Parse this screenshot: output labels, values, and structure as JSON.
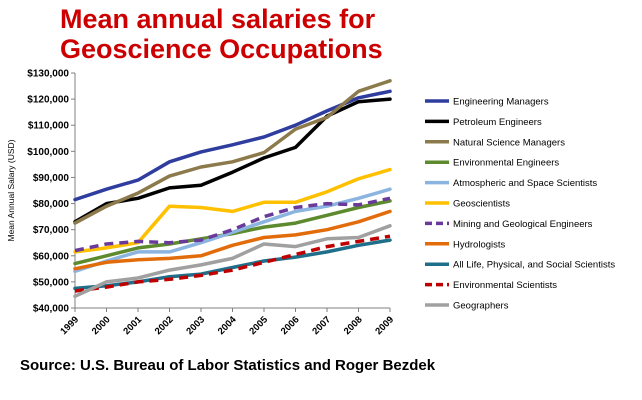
{
  "title": {
    "line1": "Mean annual salaries for",
    "line2": "Geoscience Occupations"
  },
  "source": "Source:  U.S. Bureau of Labor Statistics and Roger Bezdek",
  "chart_data": {
    "type": "line",
    "title": "Mean annual salaries for Geoscience Occupations",
    "xlabel": "",
    "ylabel": "Mean Annual Salary (USD)",
    "x": [
      "1999",
      "2000",
      "2001",
      "2002",
      "2003",
      "2004",
      "2005",
      "2006",
      "2007",
      "2008",
      "2009"
    ],
    "ylim": [
      40000,
      130000
    ],
    "yticks": [
      40000,
      50000,
      60000,
      70000,
      80000,
      90000,
      100000,
      110000,
      120000,
      130000
    ],
    "ytick_labels": [
      "$40,000",
      "$50,000",
      "$60,000",
      "$70,000",
      "$80,000",
      "$90,000",
      "$100,000",
      "$110,000",
      "$120,000",
      "$130,000"
    ],
    "grid": false,
    "legend_position": "right",
    "series": [
      {
        "name": "Engineering Managers",
        "color": "#2e3d9e",
        "dashed": false,
        "values": [
          81500,
          85500,
          89000,
          96000,
          99800,
          102500,
          105500,
          110000,
          115500,
          120500,
          123000
        ]
      },
      {
        "name": "Petroleum Engineers",
        "color": "#000000",
        "dashed": false,
        "values": [
          73000,
          80000,
          82000,
          86000,
          87000,
          92000,
          97500,
          101500,
          113500,
          119000,
          120000
        ]
      },
      {
        "name": "Natural Science Managers",
        "color": "#8c7a4c",
        "dashed": false,
        "values": [
          72500,
          79000,
          84000,
          90500,
          94000,
          96000,
          99500,
          108500,
          113000,
          123000,
          127000
        ]
      },
      {
        "name": "Environmental Engineers",
        "color": "#5e8a2e",
        "dashed": false,
        "values": [
          57000,
          60000,
          63000,
          64500,
          66500,
          68500,
          71000,
          72500,
          75500,
          78500,
          81000
        ]
      },
      {
        "name": "Atmospheric and Space Scientists",
        "color": "#8cb4e0",
        "dashed": false,
        "values": [
          54000,
          58000,
          61500,
          61500,
          65000,
          69000,
          73000,
          77000,
          79000,
          82000,
          85500
        ]
      },
      {
        "name": "Geoscientists",
        "color": "#ffc000",
        "dashed": false,
        "values": [
          61500,
          63000,
          65000,
          79000,
          78500,
          77000,
          80500,
          80500,
          84500,
          89500,
          93000
        ]
      },
      {
        "name": "Mining and Geological Engineers",
        "color": "#6a3a9a",
        "dashed": true,
        "values": [
          62000,
          64500,
          65500,
          65000,
          66000,
          70000,
          75000,
          78500,
          80000,
          79500,
          82000
        ]
      },
      {
        "name": "Hydrologists",
        "color": "#e36c0a",
        "dashed": false,
        "values": [
          55000,
          57500,
          58500,
          59000,
          60000,
          64000,
          67000,
          68000,
          70000,
          73000,
          77000
        ]
      },
      {
        "name": "All Life, Physical, and Social Scientists",
        "color": "#1f6f8b",
        "dashed": false,
        "values": [
          47500,
          48500,
          50000,
          52000,
          53000,
          55500,
          58000,
          59500,
          61500,
          64000,
          66000
        ]
      },
      {
        "name": "Environmental Scientists",
        "color": "#c00000",
        "dashed": true,
        "values": [
          46500,
          48000,
          50000,
          51000,
          52500,
          54500,
          57500,
          60500,
          63500,
          65500,
          67500
        ]
      },
      {
        "name": "Geographers",
        "color": "#a0a0a0",
        "dashed": false,
        "values": [
          44500,
          50000,
          51500,
          54500,
          56500,
          59000,
          64500,
          63500,
          66500,
          67000,
          71500
        ]
      }
    ]
  }
}
